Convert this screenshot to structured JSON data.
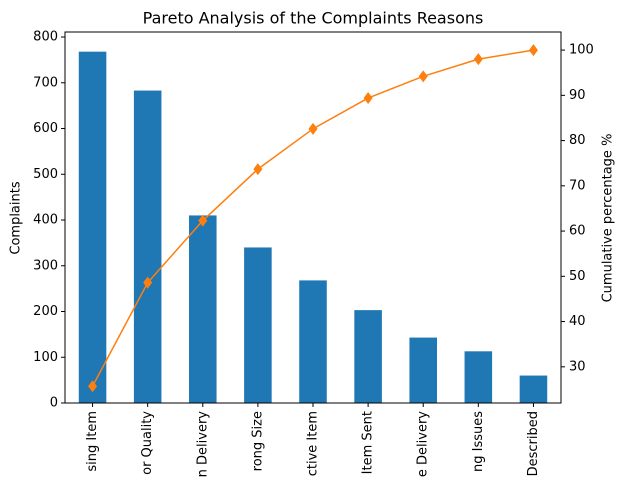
{
  "chart_data": {
    "type": "bar",
    "title": "Pareto Analysis of the Complaints Reasons",
    "ylabel": "Complaints",
    "y2label": "Cumulative percentage %",
    "categories": [
      "sing Item",
      "or Quality",
      "n Delivery",
      "rong Size",
      "ctive Item",
      "Item Sent",
      "e Delivery",
      "ng Issues",
      "Described"
    ],
    "series": [
      {
        "type": "bar",
        "color": "#1f77b4",
        "values": [
          768,
          683,
          410,
          340,
          268,
          203,
          143,
          113,
          60
        ]
      },
      {
        "type": "line",
        "axis": "y2",
        "marker": "diamond",
        "color": "#ff7f0e",
        "values": [
          25.7,
          48.6,
          62.3,
          73.7,
          82.6,
          89.4,
          94.2,
          98.0,
          100
        ]
      }
    ],
    "ylim": [
      0,
      811
    ],
    "yticks": [
      0,
      100,
      200,
      300,
      400,
      500,
      600,
      700,
      800
    ],
    "y2lim": [
      22,
      104
    ],
    "y2ticks": [
      30,
      40,
      50,
      60,
      70,
      80,
      90,
      100
    ]
  }
}
